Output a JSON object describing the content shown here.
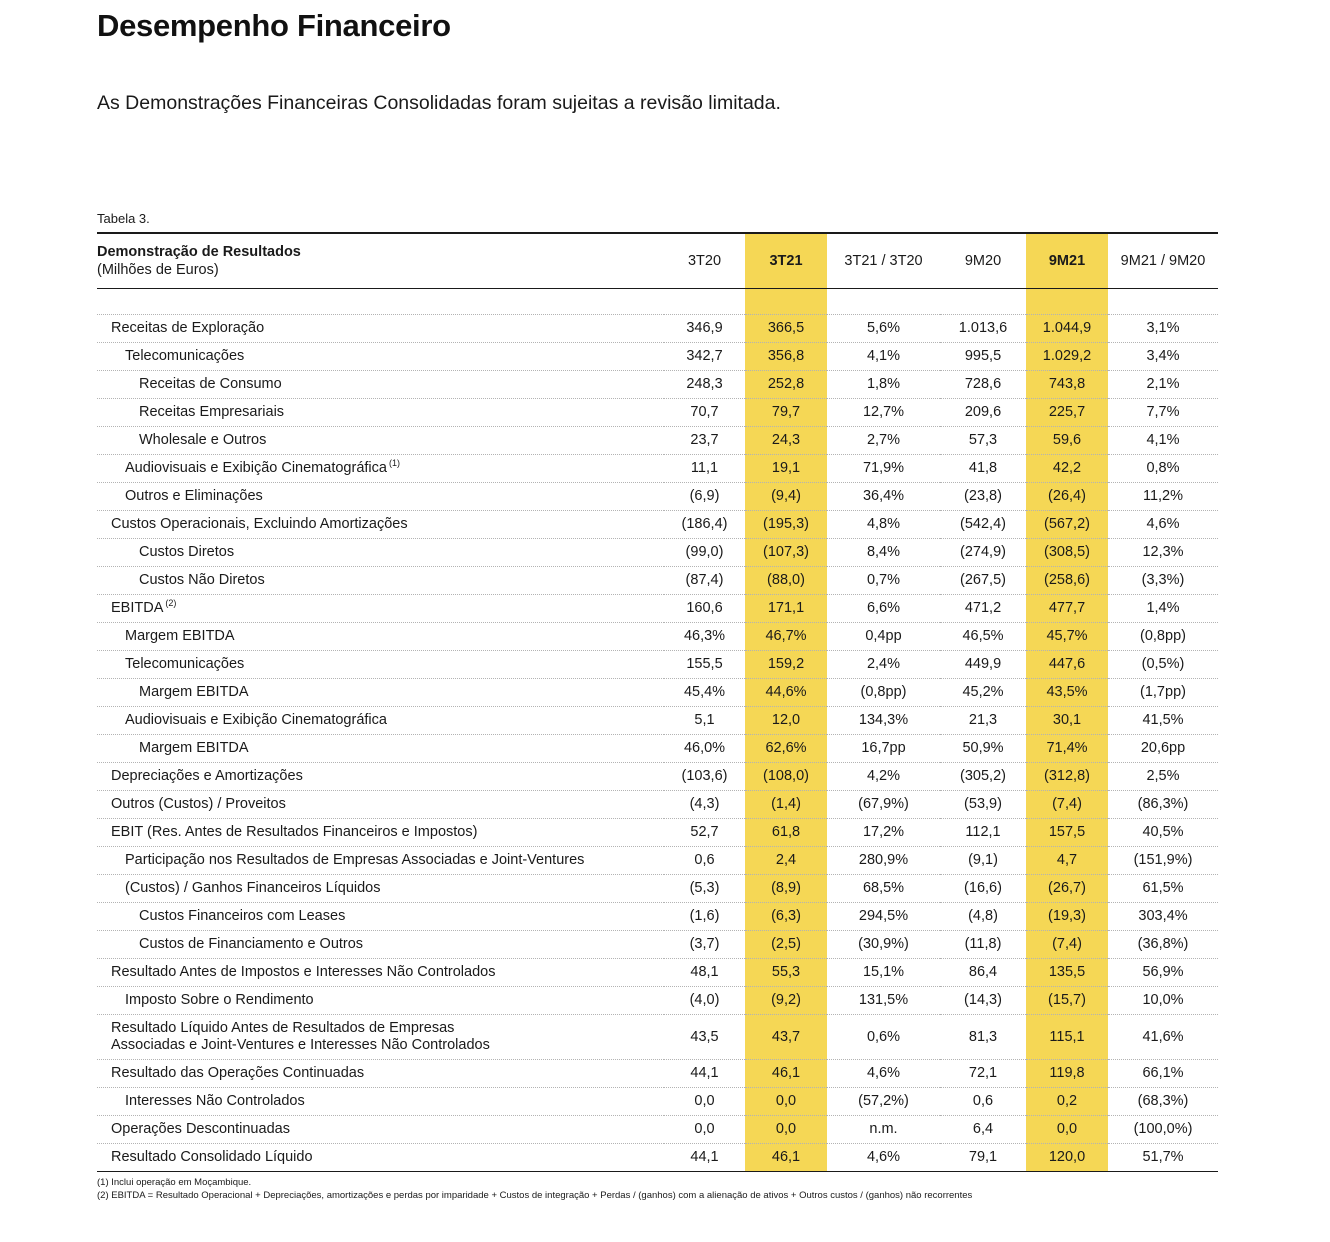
{
  "page": {
    "title": "Desempenho Financeiro",
    "subtitle": "As Demonstrações Financeiras Consolidadas foram sujeitas a revisão limitada.",
    "table_label": "Tabela 3."
  },
  "colors": {
    "highlight": "#F5D755",
    "text": "#1a1a1a"
  },
  "table": {
    "header": {
      "title": "Demonstração de Resultados",
      "units": "(Milhões de Euros)",
      "columns": [
        "3T20",
        "3T21",
        "3T21 / 3T20",
        "9M20",
        "9M21",
        "9M21 / 9M20"
      ]
    },
    "rows": [
      {
        "label": "Receitas de Exploração",
        "indent": 0,
        "values": [
          "346,9",
          "366,5",
          "5,6%",
          "1.013,6",
          "1.044,9",
          "3,1%"
        ]
      },
      {
        "label": "Telecomunicações",
        "indent": 1,
        "values": [
          "342,7",
          "356,8",
          "4,1%",
          "995,5",
          "1.029,2",
          "3,4%"
        ]
      },
      {
        "label": "Receitas de Consumo",
        "indent": 2,
        "values": [
          "248,3",
          "252,8",
          "1,8%",
          "728,6",
          "743,8",
          "2,1%"
        ]
      },
      {
        "label": "Receitas Empresariais",
        "indent": 2,
        "values": [
          "70,7",
          "79,7",
          "12,7%",
          "209,6",
          "225,7",
          "7,7%"
        ]
      },
      {
        "label": "Wholesale e Outros",
        "indent": 2,
        "values": [
          "23,7",
          "24,3",
          "2,7%",
          "57,3",
          "59,6",
          "4,1%"
        ]
      },
      {
        "label": "Audiovisuais e Exibição Cinematográfica",
        "sup": "(1)",
        "indent": 1,
        "values": [
          "11,1",
          "19,1",
          "71,9%",
          "41,8",
          "42,2",
          "0,8%"
        ]
      },
      {
        "label": "Outros e Eliminações",
        "indent": 1,
        "values": [
          "(6,9)",
          "(9,4)",
          "36,4%",
          "(23,8)",
          "(26,4)",
          "11,2%"
        ]
      },
      {
        "label": "Custos Operacionais, Excluindo Amortizações",
        "indent": 0,
        "values": [
          "(186,4)",
          "(195,3)",
          "4,8%",
          "(542,4)",
          "(567,2)",
          "4,6%"
        ]
      },
      {
        "label": "Custos Diretos",
        "indent": 2,
        "values": [
          "(99,0)",
          "(107,3)",
          "8,4%",
          "(274,9)",
          "(308,5)",
          "12,3%"
        ]
      },
      {
        "label": "Custos Não Diretos",
        "indent": 2,
        "values": [
          "(87,4)",
          "(88,0)",
          "0,7%",
          "(267,5)",
          "(258,6)",
          "(3,3%)"
        ]
      },
      {
        "label": "EBITDA",
        "sup": "(2)",
        "indent": 0,
        "values": [
          "160,6",
          "171,1",
          "6,6%",
          "471,2",
          "477,7",
          "1,4%"
        ]
      },
      {
        "label": "Margem EBITDA",
        "indent": 1,
        "values": [
          "46,3%",
          "46,7%",
          "0,4pp",
          "46,5%",
          "45,7%",
          "(0,8pp)"
        ]
      },
      {
        "label": "Telecomunicações",
        "indent": 1,
        "values": [
          "155,5",
          "159,2",
          "2,4%",
          "449,9",
          "447,6",
          "(0,5%)"
        ]
      },
      {
        "label": "Margem EBITDA",
        "indent": 2,
        "values": [
          "45,4%",
          "44,6%",
          "(0,8pp)",
          "45,2%",
          "43,5%",
          "(1,7pp)"
        ]
      },
      {
        "label": "Audiovisuais e Exibição Cinematográfica",
        "indent": 1,
        "values": [
          "5,1",
          "12,0",
          "134,3%",
          "21,3",
          "30,1",
          "41,5%"
        ]
      },
      {
        "label": "Margem EBITDA",
        "indent": 2,
        "values": [
          "46,0%",
          "62,6%",
          "16,7pp",
          "50,9%",
          "71,4%",
          "20,6pp"
        ]
      },
      {
        "label": "Depreciações e Amortizações",
        "indent": 0,
        "values": [
          "(103,6)",
          "(108,0)",
          "4,2%",
          "(305,2)",
          "(312,8)",
          "2,5%"
        ]
      },
      {
        "label": "Outros (Custos) / Proveitos",
        "indent": 0,
        "values": [
          "(4,3)",
          "(1,4)",
          "(67,9%)",
          "(53,9)",
          "(7,4)",
          "(86,3%)"
        ]
      },
      {
        "label": "EBIT (Res. Antes de Resultados Financeiros e Impostos)",
        "indent": 0,
        "values": [
          "52,7",
          "61,8",
          "17,2%",
          "112,1",
          "157,5",
          "40,5%"
        ]
      },
      {
        "label": "Participação nos Resultados de Empresas Associadas e Joint-Ventures",
        "indent": 1,
        "values": [
          "0,6",
          "2,4",
          "280,9%",
          "(9,1)",
          "4,7",
          "(151,9%)"
        ]
      },
      {
        "label": "(Custos) / Ganhos Financeiros Líquidos",
        "indent": 1,
        "values": [
          "(5,3)",
          "(8,9)",
          "68,5%",
          "(16,6)",
          "(26,7)",
          "61,5%"
        ]
      },
      {
        "label": "Custos Financeiros com Leases",
        "indent": 2,
        "values": [
          "(1,6)",
          "(6,3)",
          "294,5%",
          "(4,8)",
          "(19,3)",
          "303,4%"
        ]
      },
      {
        "label": "Custos de Financiamento e Outros",
        "indent": 2,
        "values": [
          "(3,7)",
          "(2,5)",
          "(30,9%)",
          "(11,8)",
          "(7,4)",
          "(36,8%)"
        ]
      },
      {
        "label": "Resultado Antes de Impostos e Interesses Não Controlados",
        "indent": 0,
        "values": [
          "48,1",
          "55,3",
          "15,1%",
          "86,4",
          "135,5",
          "56,9%"
        ]
      },
      {
        "label": "Imposto Sobre o Rendimento",
        "indent": 1,
        "values": [
          "(4,0)",
          "(9,2)",
          "131,5%",
          "(14,3)",
          "(15,7)",
          "10,0%"
        ]
      },
      {
        "label": "Resultado Líquido Antes de Resultados de Empresas\nAssociadas e Joint-Ventures e Interesses Não Controlados",
        "indent": 0,
        "values": [
          "43,5",
          "43,7",
          "0,6%",
          "81,3",
          "115,1",
          "41,6%"
        ]
      },
      {
        "label": "Resultado das Operações Continuadas",
        "indent": 0,
        "values": [
          "44,1",
          "46,1",
          "4,6%",
          "72,1",
          "119,8",
          "66,1%"
        ]
      },
      {
        "label": "Interesses Não Controlados",
        "indent": 1,
        "values": [
          "0,0",
          "0,0",
          "(57,2%)",
          "0,6",
          "0,2",
          "(68,3%)"
        ]
      },
      {
        "label": "Operações Descontinuadas",
        "indent": 0,
        "values": [
          "0,0",
          "0,0",
          "n.m.",
          "6,4",
          "0,0",
          "(100,0%)"
        ]
      },
      {
        "label": "Resultado Consolidado Líquido",
        "indent": 0,
        "values": [
          "44,1",
          "46,1",
          "4,6%",
          "79,1",
          "120,0",
          "51,7%"
        ]
      }
    ],
    "footnotes": [
      "(1) Inclui operação em Moçambique.",
      "(2) EBITDA = Resultado Operacional + Depreciações, amortizações e perdas por imparidade + Custos de integração + Perdas / (ganhos) com a alienação de ativos + Outros custos / (ganhos) não recorrentes"
    ]
  }
}
